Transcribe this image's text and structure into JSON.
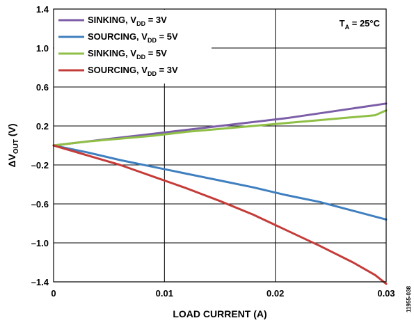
{
  "chart_data": {
    "type": "line",
    "xlabel": "LOAD CURRENT (A)",
    "ylabel": {
      "base": "ΔV",
      "sub": "OUT",
      "suffix": " (V)"
    },
    "xlim": [
      0,
      0.03
    ],
    "ylim": [
      -1.4,
      1.4
    ],
    "x_ticks": [
      {
        "value": 0,
        "label": "0"
      },
      {
        "value": 0.01,
        "label": "0.01"
      },
      {
        "value": 0.02,
        "label": "0.02"
      },
      {
        "value": 0.03,
        "label": "0.03"
      }
    ],
    "y_ticks": [
      {
        "value": 1.4,
        "label": "1.4"
      },
      {
        "value": 1.0,
        "label": "1.0"
      },
      {
        "value": 0.6,
        "label": "0.6"
      },
      {
        "value": 0.2,
        "label": "0.2"
      },
      {
        "value": -0.2,
        "label": "–0.2"
      },
      {
        "value": -0.6,
        "label": "–0.6"
      },
      {
        "value": -1.0,
        "label": "–1.0"
      },
      {
        "value": -1.4,
        "label": "–1.4"
      }
    ],
    "grid": true,
    "legend_position": "top-left",
    "annotation": {
      "base": "T",
      "sub": "A",
      "suffix": " = 25°C"
    },
    "series": [
      {
        "legend": {
          "pre": "SINKING, V",
          "sub": "DD",
          "post": " = 3V"
        },
        "color": "#7b5ea7",
        "x": [
          0,
          0.003,
          0.006,
          0.009,
          0.012,
          0.015,
          0.018,
          0.021,
          0.024,
          0.027,
          0.03
        ],
        "y": [
          0.0,
          0.04,
          0.08,
          0.12,
          0.16,
          0.2,
          0.24,
          0.28,
          0.33,
          0.38,
          0.43
        ]
      },
      {
        "legend": {
          "pre": "SOURCING, V",
          "sub": "DD",
          "post": " = 5V"
        },
        "color": "#3f7fbf",
        "x": [
          0,
          0.003,
          0.006,
          0.009,
          0.012,
          0.015,
          0.018,
          0.021,
          0.024,
          0.027,
          0.03
        ],
        "y": [
          0.0,
          -0.07,
          -0.15,
          -0.22,
          -0.29,
          -0.36,
          -0.43,
          -0.51,
          -0.58,
          -0.67,
          -0.76
        ]
      },
      {
        "legend": {
          "pre": "SINKING, V",
          "sub": "DD",
          "post": " = 5V"
        },
        "color": "#8fbf45",
        "x": [
          0,
          0.003,
          0.006,
          0.009,
          0.012,
          0.015,
          0.018,
          0.021,
          0.024,
          0.027,
          0.029,
          0.03
        ],
        "y": [
          0.0,
          0.04,
          0.07,
          0.1,
          0.14,
          0.17,
          0.2,
          0.23,
          0.26,
          0.29,
          0.31,
          0.36
        ]
      },
      {
        "legend": {
          "pre": "SOURCING, V",
          "sub": "DD",
          "post": " = 3V"
        },
        "color": "#c43c39",
        "x": [
          0,
          0.003,
          0.006,
          0.009,
          0.012,
          0.015,
          0.018,
          0.021,
          0.024,
          0.027,
          0.029,
          0.03
        ],
        "y": [
          0.0,
          -0.1,
          -0.2,
          -0.32,
          -0.44,
          -0.57,
          -0.71,
          -0.87,
          -1.03,
          -1.2,
          -1.33,
          -1.42
        ]
      }
    ]
  },
  "side_note": "11955-038"
}
